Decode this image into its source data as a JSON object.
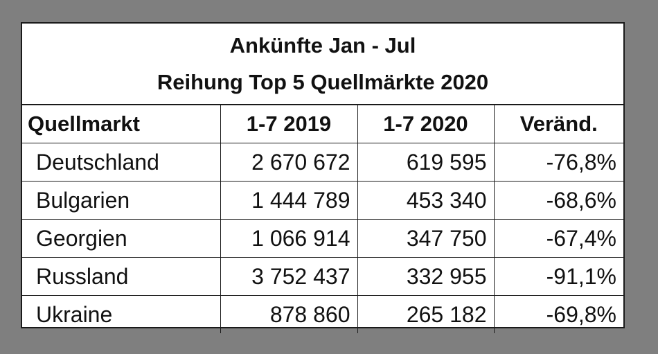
{
  "chart_data": {
    "type": "table",
    "title": "Ankünfte Jan - Jul",
    "subtitle": "Reihung Top 5 Quellmärkte 2020",
    "columns": [
      "Quellmarkt",
      "1-7 2019",
      "1-7 2020",
      "Veränd."
    ],
    "rows": [
      {
        "market": "Deutschland",
        "y2019": "2 670 672",
        "y2020": "619 595",
        "change": "-76,8%"
      },
      {
        "market": "Bulgarien",
        "y2019": "1 444 789",
        "y2020": "453 340",
        "change": "-68,6%"
      },
      {
        "market": "Georgien",
        "y2019": "1 066 914",
        "y2020": "347 750",
        "change": "-67,4%"
      },
      {
        "market": "Russland",
        "y2019": "3 752 437",
        "y2020": "332 955",
        "change": "-91,1%"
      },
      {
        "market": "Ukraine",
        "y2019": "878 860",
        "y2020": "265 182",
        "change": "-69,8%"
      }
    ]
  },
  "colors": {
    "background": "#7f7f7f",
    "sheet": "#ffffff",
    "text": "#111111",
    "border": "#1a1a1a"
  }
}
